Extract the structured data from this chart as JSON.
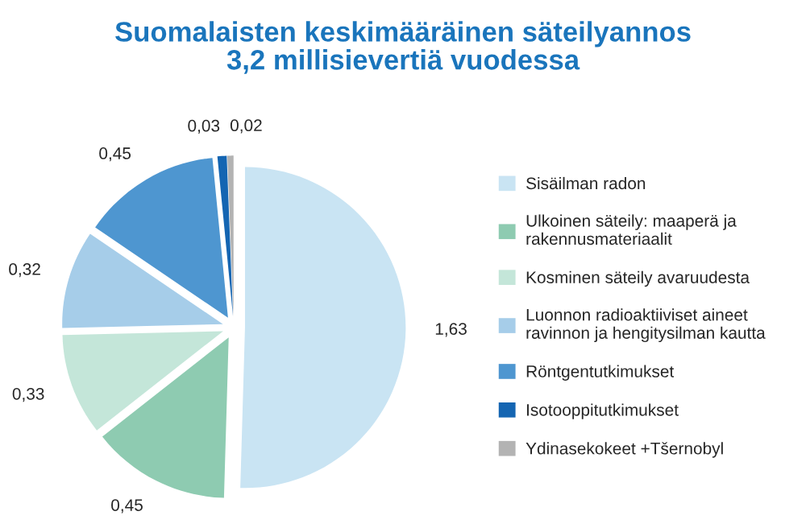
{
  "chart_data": {
    "type": "pie",
    "title": "Suomalaisten keskimääräinen säteilyannos\n3,2 millisievertiä vuodessa",
    "categories": [
      "Sisäilman radon",
      "Ulkoinen säteily: maaperä ja\nrakennusmateriaalit",
      "Kosminen säteily avaruudesta",
      "Luonnon radioaktiiviset aineet\nravinnon ja hengitysilman kautta",
      "Röntgentutkimukset",
      "Isotooppitutkimukset",
      "Ydinasekokeet +Tšernobyl"
    ],
    "values": [
      1.63,
      0.45,
      0.33,
      0.32,
      0.45,
      0.03,
      0.02
    ],
    "value_labels": [
      "1,63",
      "0,45",
      "0,33",
      "0,32",
      "0,45",
      "0,03",
      "0,02"
    ],
    "colors": [
      "#c9e4f3",
      "#8ecbb1",
      "#c4e6d9",
      "#a6cde9",
      "#4e96d0",
      "#1465b2",
      "#b3b3b3"
    ],
    "legend": "right"
  }
}
